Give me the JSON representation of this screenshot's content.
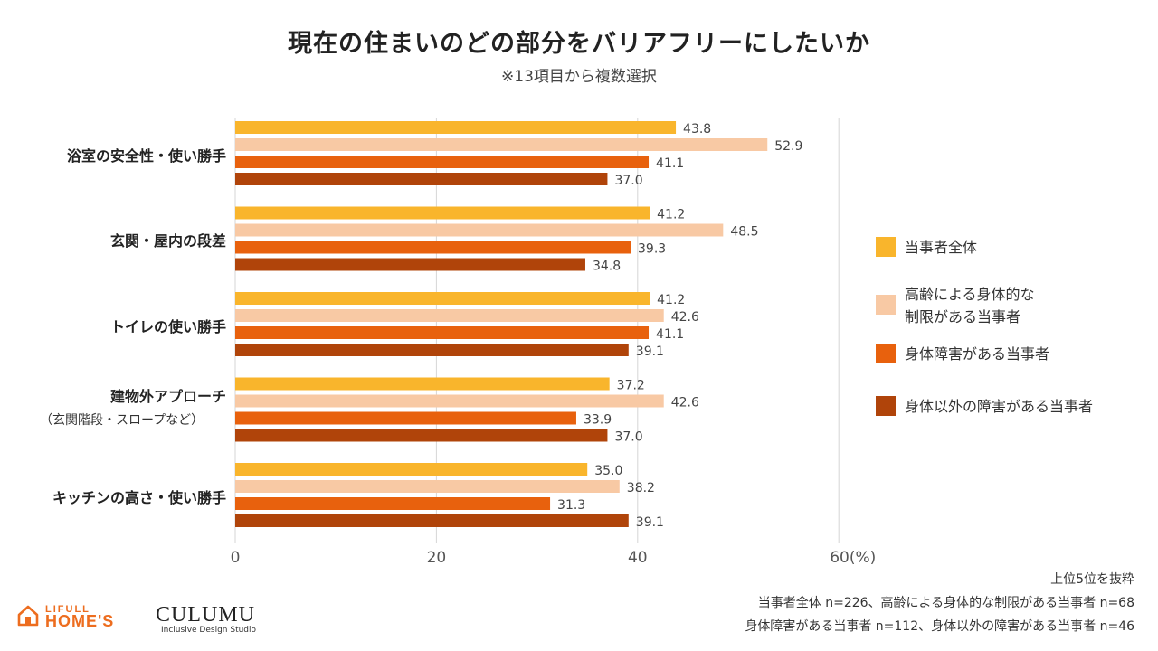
{
  "title": "現在の住まいのどの部分をバリアフリーにしたいか",
  "subtitle": "※13項目から複数選択",
  "chart_data": {
    "type": "bar",
    "orientation": "horizontal",
    "categories": [
      "浴室の安全性・使い勝手",
      "玄関・屋内の段差",
      "トイレの使い勝手",
      "建物外アプローチ",
      "キッチンの高さ・使い勝手"
    ],
    "category_sublabels": [
      "",
      "",
      "",
      "（玄関階段・スロープなど）",
      ""
    ],
    "series": [
      {
        "name": "当事者全体",
        "color": "#f9b52c",
        "values": [
          43.8,
          41.2,
          41.2,
          37.2,
          35.0
        ]
      },
      {
        "name": "高齢による身体的な\n制限がある当事者",
        "color": "#f8c9a4",
        "values": [
          52.9,
          48.5,
          42.6,
          42.6,
          38.2
        ]
      },
      {
        "name": "身体障害がある当事者",
        "color": "#e8610d",
        "values": [
          41.1,
          39.3,
          41.1,
          33.9,
          31.3
        ]
      },
      {
        "name": "身体以外の障害がある当事者",
        "color": "#b0440a",
        "values": [
          37.0,
          34.8,
          39.1,
          37.0,
          39.1
        ]
      }
    ],
    "value_labels": [
      [
        "43.8",
        "41.2",
        "41.2",
        "37.2",
        "35.0"
      ],
      [
        "52.9",
        "48.5",
        "42.6",
        "42.6",
        "38.2"
      ],
      [
        "41.1",
        "39.3",
        "41.1",
        "33.9",
        "31.3"
      ],
      [
        "37.0",
        "34.8",
        "39.1",
        "37.0",
        "39.1"
      ]
    ],
    "xlim": [
      0,
      60
    ],
    "x_ticks": [
      "0",
      "20",
      "40",
      "60(%)"
    ],
    "grid": true,
    "legend_position": "right"
  },
  "notes": [
    "上位5位を抜粋",
    "当事者全体 n=226、高齢による身体的な制限がある当事者 n=68",
    "身体障害がある当事者 n=112、身体以外の障害がある当事者 n=46"
  ],
  "logos": {
    "lifull_top": "LIFULL",
    "lifull_bottom": "HOME'S",
    "culumu": "CULUMU",
    "culumu_sub": "Inclusive Design Studio"
  }
}
